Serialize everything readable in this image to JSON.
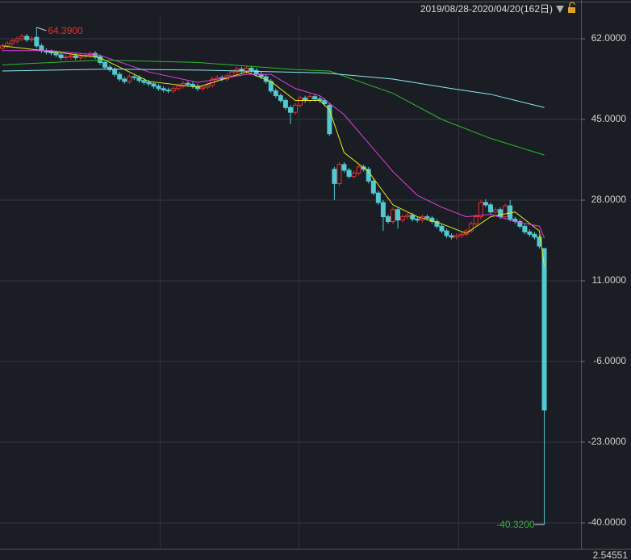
{
  "chart_data": {
    "type": "candlestick",
    "date_range": "2019/08/28-2020/04/20(162日)",
    "indicator_value": "2.54551",
    "max_label": "64.3900",
    "min_label": "-40.3200",
    "up_color": "#e2312f",
    "down_color": "#52c8d0",
    "open": [
      60.0,
      60.5,
      61.0,
      61.5,
      62.0,
      62.5,
      61.8,
      62.3,
      60.5,
      59.5,
      59.2,
      59.0,
      58.6,
      58.0,
      58.2,
      58.4,
      58.0,
      58.3,
      58.5,
      58.9,
      58.2,
      57.0,
      56.0,
      55.5,
      54.5,
      53.5,
      53.0,
      54.0,
      53.8,
      53.2,
      52.8,
      52.5,
      52.0,
      51.5,
      51.2,
      51.0,
      51.5,
      52.0,
      52.6,
      52.4,
      52.0,
      51.5,
      51.8,
      52.2,
      53.5,
      53.8,
      53.5,
      54.2,
      55.0,
      55.6,
      55.2,
      55.8,
      55.3,
      54.5,
      54.0,
      53.0,
      51.0,
      50.0,
      49.0,
      47.5,
      46.5,
      48.0,
      49.5,
      49.0,
      49.8,
      49.3,
      49.0,
      48.0,
      34.5,
      31.5,
      35.5,
      34.3,
      33.0,
      33.7,
      35.0,
      34.5,
      32.0,
      29.5,
      27.5,
      24.5,
      23.5,
      26.0,
      23.8,
      24.5,
      24.8,
      24.0,
      23.8,
      24.5,
      24.2,
      23.5,
      22.5,
      21.5,
      20.5,
      20.2,
      20.5,
      20.8,
      21.5,
      23.0,
      24.5,
      27.5,
      27.0,
      25.5,
      26.0,
      24.5,
      26.8,
      24.0,
      23.5,
      22.5,
      21.3,
      20.8,
      20.2,
      17.8
    ],
    "high": [
      61.0,
      61.5,
      62.0,
      62.5,
      63.0,
      63.0,
      62.5,
      64.39,
      61.0,
      60.0,
      59.7,
      59.5,
      59.1,
      58.7,
      58.9,
      58.9,
      58.8,
      59.0,
      59.4,
      59.4,
      58.7,
      57.5,
      56.5,
      56.0,
      55.0,
      54.0,
      54.5,
      54.5,
      54.3,
      53.7,
      53.3,
      53.0,
      52.5,
      52.0,
      51.7,
      52.0,
      52.5,
      53.1,
      53.1,
      52.9,
      52.5,
      52.3,
      52.7,
      54.0,
      54.3,
      54.3,
      54.7,
      55.5,
      56.1,
      56.1,
      56.3,
      56.3,
      55.8,
      55.0,
      54.5,
      53.5,
      51.5,
      50.5,
      49.5,
      48.0,
      48.5,
      50.0,
      50.0,
      50.3,
      50.3,
      49.8,
      49.5,
      48.5,
      35.0,
      36.0,
      36.0,
      34.8,
      34.2,
      35.5,
      35.5,
      35.0,
      32.5,
      30.0,
      28.0,
      25.0,
      26.5,
      26.5,
      25.0,
      25.3,
      25.3,
      24.5,
      25.0,
      25.0,
      24.7,
      24.0,
      23.0,
      22.0,
      21.0,
      21.0,
      21.3,
      22.0,
      23.5,
      25.0,
      28.0,
      28.2,
      27.5,
      26.5,
      26.5,
      27.3,
      28.0,
      24.5,
      24.0,
      23.0,
      21.8,
      21.3,
      20.7,
      17.8
    ],
    "low": [
      59.5,
      60.0,
      60.5,
      61.0,
      61.5,
      61.3,
      61.3,
      60.0,
      59.0,
      58.7,
      58.5,
      58.1,
      57.5,
      57.5,
      57.7,
      57.5,
      57.5,
      57.8,
      58.0,
      57.7,
      56.5,
      55.5,
      55.0,
      54.0,
      53.0,
      52.5,
      52.5,
      53.3,
      52.7,
      52.3,
      52.0,
      51.5,
      51.0,
      50.7,
      50.5,
      50.5,
      51.0,
      51.5,
      51.9,
      51.5,
      51.0,
      51.0,
      51.3,
      51.7,
      53.0,
      53.0,
      53.0,
      53.7,
      54.5,
      54.7,
      54.7,
      54.8,
      54.0,
      53.5,
      52.5,
      50.5,
      49.5,
      48.5,
      47.0,
      44.0,
      46.0,
      47.5,
      48.5,
      48.5,
      48.8,
      48.5,
      47.8,
      41.5,
      28.0,
      31.0,
      33.8,
      32.5,
      32.5,
      33.2,
      34.0,
      31.5,
      29.0,
      27.0,
      21.5,
      23.0,
      23.0,
      22.0,
      23.3,
      24.0,
      23.5,
      23.3,
      23.3,
      23.7,
      23.0,
      22.0,
      21.0,
      20.0,
      19.7,
      19.7,
      20.0,
      20.3,
      21.0,
      22.5,
      24.0,
      26.5,
      25.0,
      25.0,
      24.0,
      24.0,
      23.5,
      23.0,
      22.0,
      20.8,
      20.3,
      19.7,
      17.8,
      -40.32
    ],
    "close": [
      60.5,
      61.0,
      61.5,
      62.0,
      62.5,
      61.8,
      62.0,
      60.5,
      59.5,
      59.2,
      59.0,
      58.6,
      58.0,
      58.2,
      58.4,
      58.0,
      58.3,
      58.5,
      58.9,
      58.2,
      57.0,
      56.0,
      55.5,
      54.5,
      53.5,
      53.0,
      54.0,
      53.8,
      53.2,
      52.8,
      52.5,
      52.0,
      51.5,
      51.2,
      51.0,
      51.5,
      52.0,
      52.6,
      52.4,
      52.0,
      51.5,
      51.8,
      52.2,
      53.5,
      53.8,
      53.5,
      54.2,
      55.0,
      55.6,
      55.2,
      55.8,
      55.3,
      54.5,
      54.0,
      53.0,
      51.0,
      50.0,
      49.0,
      47.5,
      46.5,
      48.0,
      49.5,
      49.0,
      49.8,
      49.3,
      49.0,
      48.3,
      42.0,
      31.5,
      35.5,
      34.3,
      33.0,
      33.7,
      35.0,
      34.5,
      32.0,
      29.5,
      27.5,
      24.5,
      23.5,
      26.0,
      23.8,
      24.5,
      24.8,
      24.0,
      23.8,
      24.5,
      24.2,
      23.5,
      22.5,
      21.5,
      20.5,
      20.2,
      20.5,
      20.8,
      21.5,
      23.0,
      24.5,
      27.5,
      27.0,
      25.5,
      26.0,
      24.5,
      26.8,
      24.0,
      23.5,
      22.5,
      21.3,
      20.8,
      20.2,
      18.3,
      -16.2
    ],
    "series": [
      {
        "color": "#e8e81e",
        "x": [
          0,
          10,
          20,
          30,
          40,
          50,
          55,
          60,
          65,
          67,
          70,
          75,
          80,
          85,
          90,
          95,
          100,
          105,
          110,
          111
        ],
        "values": [
          60.5,
          59.3,
          58.0,
          53.0,
          51.8,
          55.0,
          53.0,
          49.0,
          49.0,
          47.0,
          38.0,
          34.0,
          27.0,
          24.5,
          23.0,
          21.0,
          24.5,
          25.5,
          21.5,
          14.0
        ]
      },
      {
        "color": "#e040e0",
        "x": [
          0,
          10,
          20,
          30,
          40,
          50,
          55,
          60,
          65,
          70,
          75,
          80,
          85,
          90,
          95,
          100,
          105,
          110,
          111
        ],
        "values": [
          59.5,
          59.5,
          58.5,
          55.0,
          52.8,
          54.5,
          54.5,
          51.5,
          50.0,
          46.0,
          40.0,
          34.0,
          29.0,
          26.5,
          24.5,
          25.0,
          23.5,
          22.5,
          20.0
        ]
      },
      {
        "color": "#2fb82f",
        "x": [
          0,
          20,
          40,
          60,
          67,
          80,
          90,
          100,
          111
        ],
        "values": [
          56.5,
          57.5,
          57.0,
          55.5,
          55.2,
          50.5,
          45.0,
          41.0,
          37.5
        ]
      },
      {
        "color": "#8fe6f0",
        "x": [
          0,
          22,
          40,
          66,
          80,
          92,
          100,
          111
        ],
        "values": [
          55.2,
          55.6,
          55.4,
          54.8,
          53.5,
          51.5,
          50.3,
          47.5
        ]
      }
    ],
    "ylim": [
      -45.44,
      70.16
    ],
    "yticks": [
      {
        "value": 62,
        "label": "62.0000"
      },
      {
        "value": 45,
        "label": "45.0000"
      },
      {
        "value": 28,
        "label": "28.0000"
      },
      {
        "value": 11,
        "label": "11.0000"
      },
      {
        "value": -6,
        "label": "-6.0000"
      },
      {
        "value": -23,
        "label": "-23.0000"
      },
      {
        "value": -40,
        "label": "-40.0000"
      }
    ],
    "grid": true
  }
}
